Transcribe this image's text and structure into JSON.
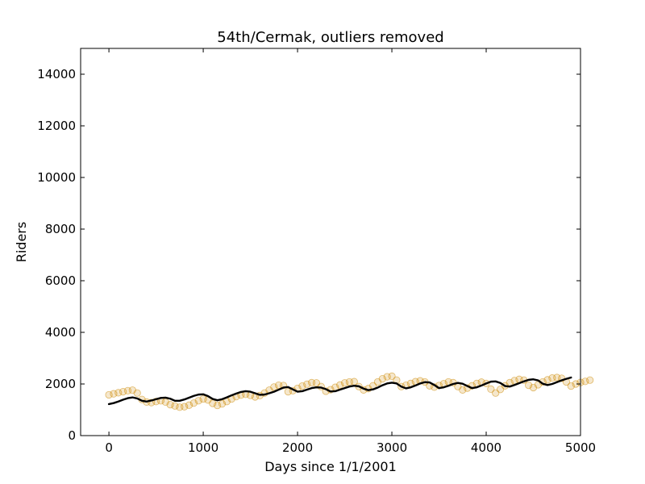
{
  "chart_data": {
    "type": "scatter",
    "title": "54th/Cermak, outliers removed",
    "xlabel": "Days since 1/1/2001",
    "ylabel": "Riders",
    "xlim": [
      -300,
      5000
    ],
    "ylim": [
      0,
      15000
    ],
    "xticks": [
      0,
      1000,
      2000,
      3000,
      4000,
      5000
    ],
    "yticks": [
      0,
      2000,
      4000,
      6000,
      8000,
      10000,
      12000,
      14000
    ],
    "xtick_labels": [
      "0",
      "1000",
      "2000",
      "3000",
      "4000",
      "5000"
    ],
    "ytick_labels": [
      "0",
      "2000",
      "4000",
      "6000",
      "8000",
      "10000",
      "12000",
      "14000"
    ],
    "grid": false,
    "series": [
      {
        "kind": "scatter",
        "marker": "circle",
        "color": "#cc8800",
        "opacity": 0.2,
        "x_start": 0,
        "x_step": 50,
        "values": [
          1580,
          1620,
          1660,
          1700,
          1740,
          1760,
          1650,
          1400,
          1300,
          1280,
          1320,
          1350,
          1300,
          1200,
          1150,
          1100,
          1120,
          1180,
          1260,
          1350,
          1420,
          1380,
          1250,
          1170,
          1230,
          1320,
          1420,
          1510,
          1570,
          1600,
          1560,
          1500,
          1550,
          1650,
          1760,
          1880,
          1950,
          1940,
          1700,
          1740,
          1830,
          1920,
          1990,
          2050,
          2040,
          1900,
          1720,
          1780,
          1870,
          1960,
          2040,
          2080,
          2090,
          1900,
          1770,
          1820,
          1930,
          2080,
          2200,
          2280,
          2300,
          2150,
          1900,
          1950,
          2020,
          2090,
          2120,
          2080,
          1930,
          1880,
          1940,
          2010,
          2080,
          2050,
          1900,
          1770,
          1840,
          1930,
          2020,
          2070,
          2020,
          1800,
          1650,
          1790,
          1930,
          2050,
          2130,
          2180,
          2150,
          1950,
          1860,
          1970,
          2080,
          2160,
          2230,
          2250,
          2220,
          2080,
          1920,
          2000,
          2060,
          2100,
          2150
        ]
      },
      {
        "kind": "line",
        "color": "#000000",
        "x_start": 0,
        "x_step": 50,
        "values": [
          1220,
          1260,
          1320,
          1390,
          1450,
          1480,
          1440,
          1350,
          1320,
          1360,
          1410,
          1460,
          1470,
          1430,
          1350,
          1350,
          1400,
          1470,
          1540,
          1590,
          1600,
          1530,
          1420,
          1370,
          1410,
          1480,
          1560,
          1630,
          1690,
          1720,
          1700,
          1640,
          1580,
          1590,
          1640,
          1700,
          1780,
          1860,
          1880,
          1790,
          1700,
          1720,
          1780,
          1840,
          1870,
          1860,
          1800,
          1710,
          1720,
          1780,
          1840,
          1900,
          1930,
          1910,
          1820,
          1760,
          1790,
          1860,
          1950,
          2020,
          2050,
          2020,
          1900,
          1830,
          1870,
          1940,
          2020,
          2070,
          2060,
          1960,
          1840,
          1870,
          1930,
          2000,
          2040,
          2010,
          1920,
          1840,
          1870,
          1940,
          2020,
          2090,
          2100,
          2040,
          1920,
          1900,
          1960,
          2030,
          2100,
          2160,
          2180,
          2140,
          2010,
          1960,
          2000,
          2070,
          2140,
          2200,
          2250
        ]
      }
    ]
  }
}
